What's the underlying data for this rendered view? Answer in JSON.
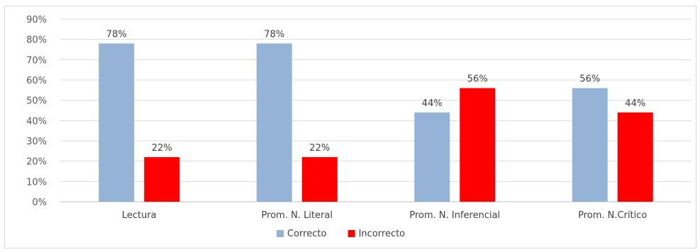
{
  "chart_data": {
    "type": "bar",
    "title": "",
    "xlabel": "",
    "ylabel": "",
    "categories": [
      "Lectura",
      "Prom. N. Literal",
      "Prom. N. Inferencial",
      "Prom. N.Crítico"
    ],
    "series": [
      {
        "name": "Correcto",
        "color": "#95b3d7",
        "values": [
          78,
          78,
          44,
          56
        ],
        "labels": [
          "78%",
          "78%",
          "44%",
          "56%"
        ]
      },
      {
        "name": "Incorrecto",
        "color": "#ff0000",
        "values": [
          22,
          22,
          56,
          44
        ],
        "labels": [
          "22%",
          "22%",
          "56%",
          "44%"
        ]
      }
    ],
    "ylim": [
      0,
      90
    ],
    "yticks": [
      0,
      10,
      20,
      30,
      40,
      50,
      60,
      70,
      80,
      90
    ],
    "ytick_labels": [
      "0%",
      "10%",
      "20%",
      "30%",
      "40%",
      "50%",
      "60%",
      "70%",
      "80%",
      "90%"
    ],
    "grid": true,
    "legend_position": "bottom"
  }
}
